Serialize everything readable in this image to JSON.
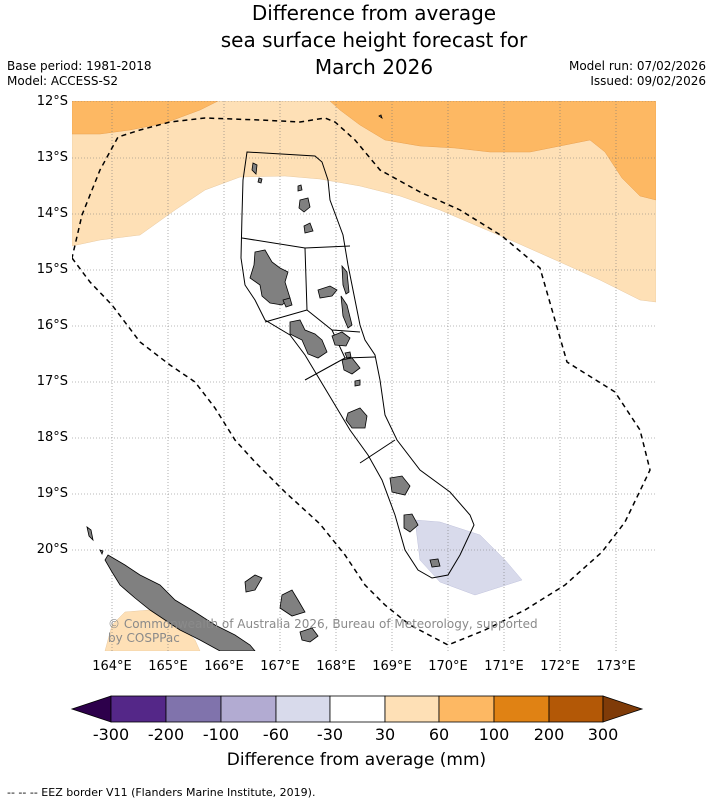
{
  "title": {
    "line1": "Difference from average",
    "line2": "sea surface height forecast for",
    "line3": "March 2026"
  },
  "meta": {
    "base_period": "Base period: 1981-2018",
    "model": "Model: ACCESS-S2",
    "model_run": "Model run: 07/02/2026",
    "issued": "Issued: 09/02/2026"
  },
  "map": {
    "lat_labels": [
      "12°S",
      "13°S",
      "14°S",
      "15°S",
      "16°S",
      "17°S",
      "18°S",
      "19°S",
      "20°S"
    ],
    "lon_labels": [
      "164°E",
      "165°E",
      "166°E",
      "167°E",
      "168°E",
      "169°E",
      "170°E",
      "171°E",
      "172°E",
      "173°E"
    ],
    "copyright_line1": "© Commonwealth of Australia 2026, Bureau of Meteorology, supported",
    "copyright_line2": "by COSPPac",
    "colors": {
      "ocean": "#ffffff",
      "land": "#808080",
      "pos_30_60": "#fee0b6",
      "pos_60_100": "#fdb863",
      "neg_30_60": "#d8daeb"
    }
  },
  "colorbar": {
    "labels": [
      "-300",
      "-200",
      "-100",
      "-60",
      "-30",
      "30",
      "60",
      "100",
      "200",
      "300"
    ],
    "colors": [
      "#2d004b",
      "#542788",
      "#8073ac",
      "#b2abd2",
      "#d8daeb",
      "#ffffff",
      "#fee0b6",
      "#fdb863",
      "#e08214",
      "#b35806",
      "#7f3b08"
    ],
    "title": "Difference from average (mm)"
  },
  "footer": "--  --  -- EEZ border V11 (Flanders Marine Institute, 2019)."
}
